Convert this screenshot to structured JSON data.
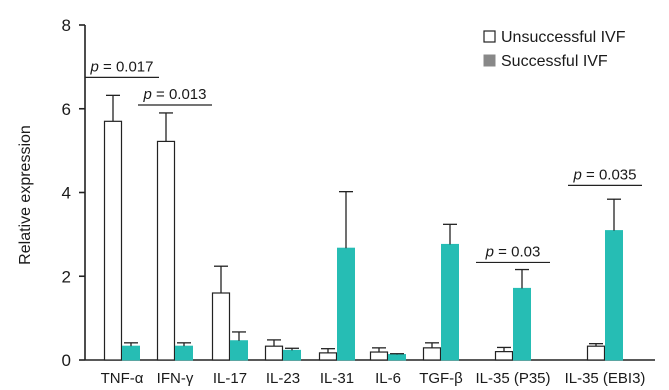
{
  "chart_data": {
    "type": "bar",
    "title": "",
    "xlabel": "",
    "ylabel": "Relative expression",
    "ylim": [
      0,
      8
    ],
    "yticks": [
      0,
      2,
      4,
      6,
      8
    ],
    "grid": false,
    "legend_position": "top-right",
    "categories": [
      "TNF-α",
      "IFN-γ",
      "IL-17",
      "IL-23",
      "IL-31",
      "IL-6",
      "TGF-β",
      "IL-35 (P35)",
      "IL-35 (EBI3)"
    ],
    "series": [
      {
        "name": "Unsuccessful IVF",
        "color": "#ffffff",
        "stroke": "#222222",
        "values": [
          5.7,
          5.22,
          1.6,
          0.33,
          0.17,
          0.19,
          0.29,
          0.2,
          0.33
        ],
        "error": [
          0.62,
          0.68,
          0.64,
          0.15,
          0.1,
          0.1,
          0.12,
          0.1,
          0.06
        ]
      },
      {
        "name": "Successful IVF",
        "color": "#26bdb4",
        "stroke": "#26bdb4",
        "values": [
          0.33,
          0.33,
          0.46,
          0.23,
          2.67,
          0.13,
          2.76,
          1.71,
          3.09
        ],
        "error": [
          0.08,
          0.08,
          0.21,
          0.05,
          1.35,
          0.02,
          0.48,
          0.45,
          0.75
        ]
      }
    ],
    "annotations": [
      {
        "prefix": "p",
        "text": " = 0.017",
        "category": 0,
        "y": 6.75
      },
      {
        "prefix": "p",
        "text": " = 0.013",
        "category": 1,
        "y": 6.09
      },
      {
        "prefix": "p",
        "text": " = 0.03",
        "category": 7,
        "y": 2.33
      },
      {
        "prefix": "p",
        "text": " = 0.035",
        "category": 8,
        "y": 4.17
      }
    ]
  }
}
